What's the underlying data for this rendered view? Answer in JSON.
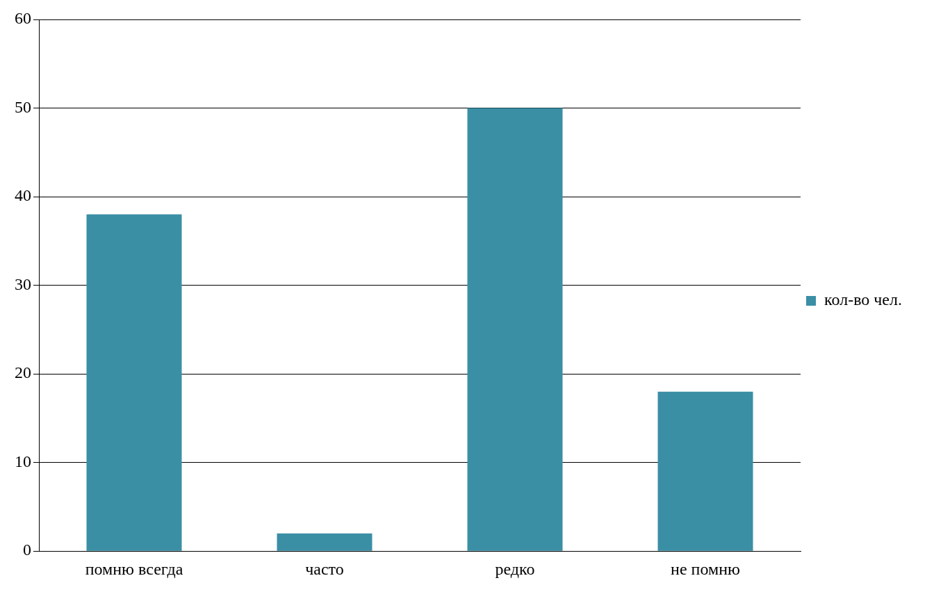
{
  "chart_data": {
    "type": "bar",
    "categories": [
      "помню всегда",
      "часто",
      "редко",
      "не помню"
    ],
    "series": [
      {
        "name": "кол-во чел.",
        "color": "#3a8fa5",
        "values": [
          38,
          2,
          50,
          18
        ]
      }
    ],
    "ylim": [
      0,
      60
    ],
    "yticks": [
      0,
      10,
      20,
      30,
      40,
      50,
      60
    ],
    "grid": "y",
    "legend": "right"
  }
}
